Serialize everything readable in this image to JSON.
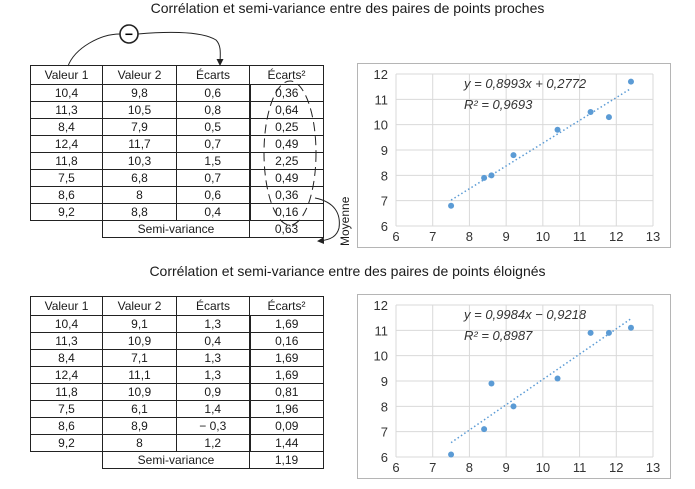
{
  "title_top": "Corrélation et semi-variance entre des paires de points proches",
  "title_bottom": "Corrélation et semi-variance entre des paires de points éloignés",
  "headers": [
    "Valeur 1",
    "Valeur 2",
    "Écarts",
    "Écarts²"
  ],
  "semi_label": "Semi-variance",
  "moyenne_label": "Moyenne",
  "minus_symbol": "−",
  "table_top": {
    "rows": [
      [
        "10,4",
        "9,8",
        "0,6",
        "0,36"
      ],
      [
        "11,3",
        "10,5",
        "0,8",
        "0,64"
      ],
      [
        "8,4",
        "7,9",
        "0,5",
        "0,25"
      ],
      [
        "12,4",
        "11,7",
        "0,7",
        "0,49"
      ],
      [
        "11,8",
        "10,3",
        "1,5",
        "2,25"
      ],
      [
        "7,5",
        "6,8",
        "0,7",
        "0,49"
      ],
      [
        "8,6",
        "8",
        "0,6",
        "0,36"
      ],
      [
        "9,2",
        "8,8",
        "0,4",
        "0,16"
      ]
    ],
    "semi_value": "0,63"
  },
  "table_bottom": {
    "rows": [
      [
        "10,4",
        "9,1",
        "1,3",
        "1,69"
      ],
      [
        "11,3",
        "10,9",
        "0,4",
        "0,16"
      ],
      [
        "8,4",
        "7,1",
        "1,3",
        "1,69"
      ],
      [
        "12,4",
        "11,1",
        "1,3",
        "1,69"
      ],
      [
        "11,8",
        "10,9",
        "0,9",
        "0,81"
      ],
      [
        "7,5",
        "6,1",
        "1,4",
        "1,96"
      ],
      [
        "8,6",
        "8,9",
        "− 0,3",
        "0,09"
      ],
      [
        "9,2",
        "8",
        "1,2",
        "1,44"
      ]
    ],
    "semi_value": "1,19"
  },
  "chart_data": [
    {
      "type": "scatter",
      "x": [
        10.4,
        11.3,
        8.4,
        12.4,
        11.8,
        7.5,
        8.6,
        9.2
      ],
      "y": [
        9.8,
        10.5,
        7.9,
        11.7,
        10.3,
        6.8,
        8.0,
        8.8
      ],
      "xlim": [
        6,
        13
      ],
      "ylim": [
        6,
        12
      ],
      "xticks": [
        "6",
        "7",
        "8",
        "9",
        "10",
        "11",
        "12",
        "13"
      ],
      "yticks": [
        "6",
        "7",
        "8",
        "9",
        "10",
        "11",
        "12"
      ],
      "trendline": {
        "slope": 0.8993,
        "intercept": 0.2772
      },
      "equation": "y = 0,8993x + 0,2772",
      "r2": "R² = 0,9693",
      "grid": true,
      "point_color": "#5b9bd5"
    },
    {
      "type": "scatter",
      "x": [
        10.4,
        11.3,
        8.4,
        12.4,
        11.8,
        7.5,
        8.6,
        9.2
      ],
      "y": [
        9.1,
        10.9,
        7.1,
        11.1,
        10.9,
        6.1,
        8.9,
        8.0
      ],
      "xlim": [
        6,
        13
      ],
      "ylim": [
        6,
        12
      ],
      "xticks": [
        "6",
        "7",
        "8",
        "9",
        "10",
        "11",
        "12",
        "13"
      ],
      "yticks": [
        "6",
        "7",
        "8",
        "9",
        "10",
        "11",
        "12"
      ],
      "trendline": {
        "slope": 0.9984,
        "intercept": -0.9218
      },
      "equation": "y = 0,9984x − 0,9218",
      "r2": "R² = 0,8987",
      "grid": true,
      "point_color": "#5b9bd5"
    }
  ]
}
